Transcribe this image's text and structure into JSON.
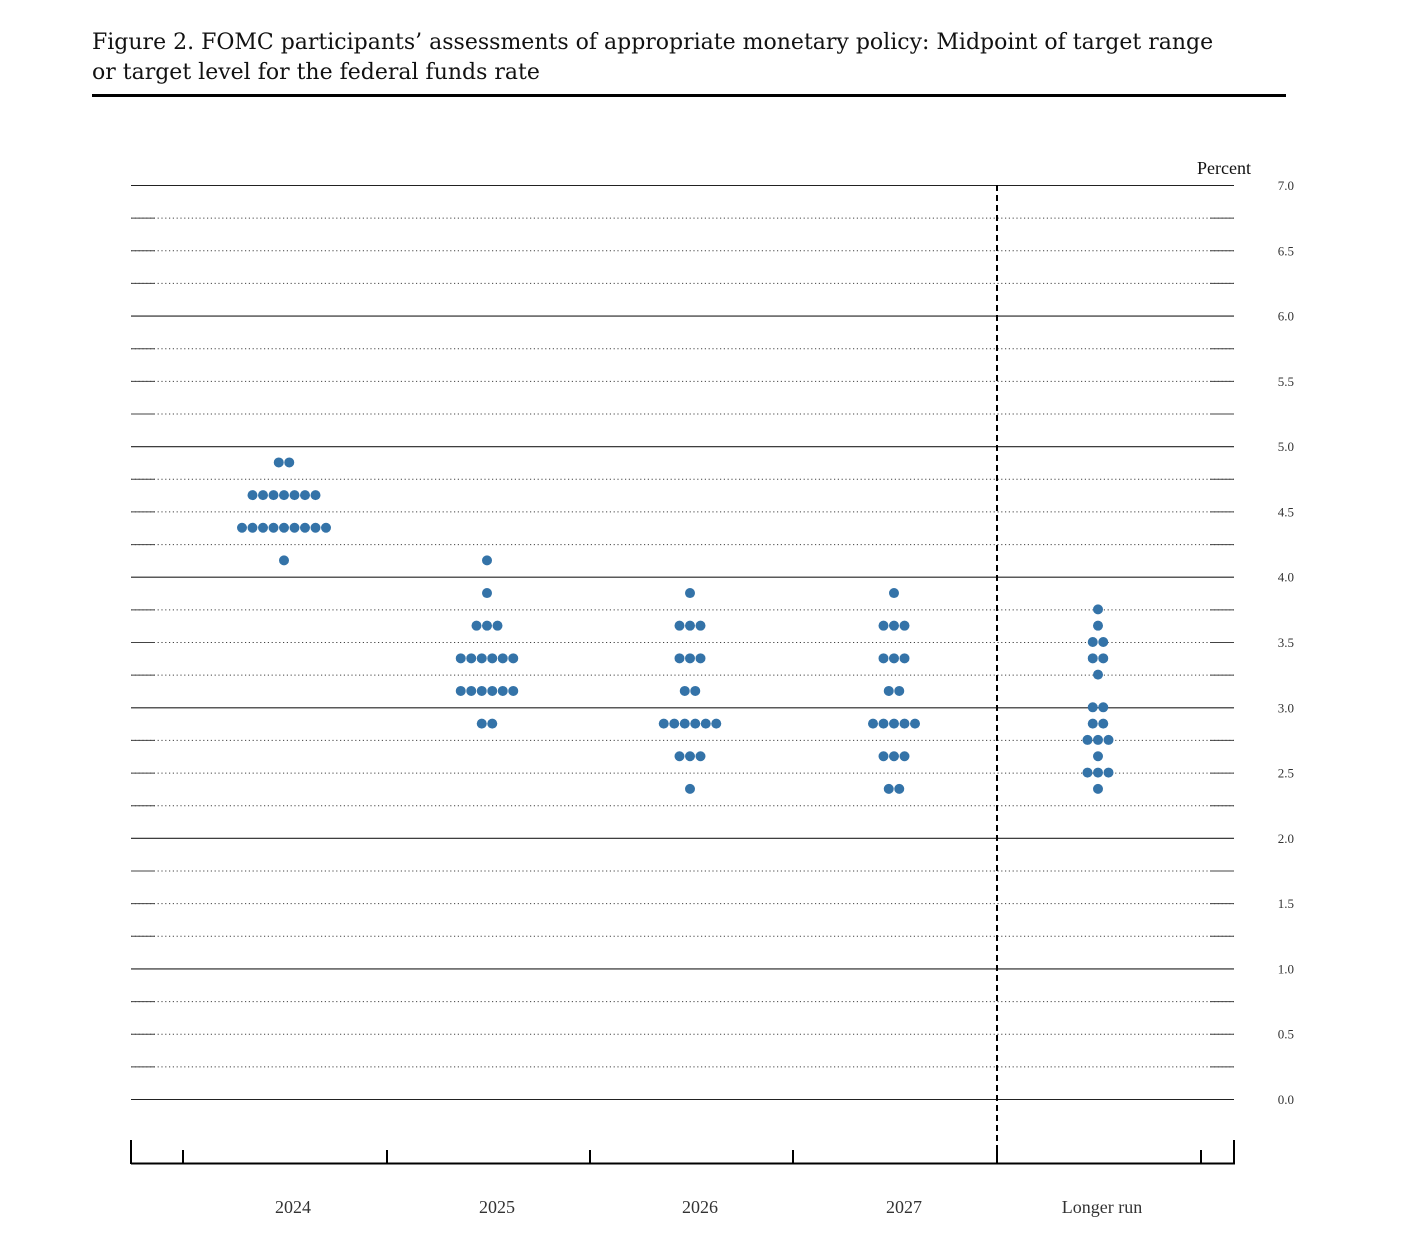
{
  "figure": {
    "title_line1": "Figure 2.  FOMC participants’ assessments of appropriate monetary policy:  Midpoint of target range",
    "title_line2": "or target level for the federal funds rate"
  },
  "chart_data": {
    "type": "scatter",
    "subtype": "dot-plot",
    "ylabel": "Percent",
    "ylim": [
      0.0,
      7.0
    ],
    "y_tick_labels": [
      "0.0",
      "0.5",
      "1.0",
      "1.5",
      "2.0",
      "2.5",
      "3.0",
      "3.5",
      "4.0",
      "4.5",
      "5.0",
      "5.5",
      "6.0",
      "6.5",
      "7.0"
    ],
    "categories": [
      "2024",
      "2025",
      "2026",
      "2027",
      "Longer run"
    ],
    "dot_color": "#3473a8",
    "grid": "dotted every 0.25, solid every 1.0",
    "separator_before": "Longer run",
    "series": [
      {
        "category": "2024",
        "points": [
          {
            "y": 4.875,
            "count": 2
          },
          {
            "y": 4.625,
            "count": 7
          },
          {
            "y": 4.375,
            "count": 9
          },
          {
            "y": 4.125,
            "count": 1
          }
        ]
      },
      {
        "category": "2025",
        "points": [
          {
            "y": 4.125,
            "count": 1
          },
          {
            "y": 3.875,
            "count": 1
          },
          {
            "y": 3.625,
            "count": 3
          },
          {
            "y": 3.375,
            "count": 6
          },
          {
            "y": 3.125,
            "count": 6
          },
          {
            "y": 2.875,
            "count": 2
          }
        ]
      },
      {
        "category": "2026",
        "points": [
          {
            "y": 3.875,
            "count": 1
          },
          {
            "y": 3.625,
            "count": 3
          },
          {
            "y": 3.375,
            "count": 3
          },
          {
            "y": 3.125,
            "count": 2
          },
          {
            "y": 2.875,
            "count": 6
          },
          {
            "y": 2.625,
            "count": 3
          },
          {
            "y": 2.375,
            "count": 1
          }
        ]
      },
      {
        "category": "2027",
        "points": [
          {
            "y": 3.875,
            "count": 1
          },
          {
            "y": 3.625,
            "count": 3
          },
          {
            "y": 3.375,
            "count": 3
          },
          {
            "y": 3.125,
            "count": 2
          },
          {
            "y": 2.875,
            "count": 5
          },
          {
            "y": 2.625,
            "count": 3
          },
          {
            "y": 2.375,
            "count": 2
          }
        ]
      },
      {
        "category": "Longer run",
        "points": [
          {
            "y": 3.75,
            "count": 1
          },
          {
            "y": 3.625,
            "count": 1
          },
          {
            "y": 3.5,
            "count": 2
          },
          {
            "y": 3.375,
            "count": 2
          },
          {
            "y": 3.25,
            "count": 1
          },
          {
            "y": 3.0,
            "count": 2
          },
          {
            "y": 2.875,
            "count": 2
          },
          {
            "y": 2.75,
            "count": 3
          },
          {
            "y": 2.625,
            "count": 1
          },
          {
            "y": 2.5,
            "count": 3
          },
          {
            "y": 2.375,
            "count": 1
          }
        ]
      }
    ]
  }
}
